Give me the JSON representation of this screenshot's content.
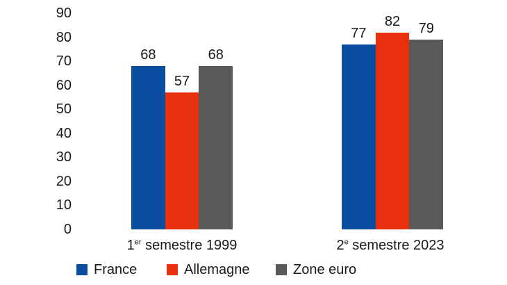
{
  "chart_data": {
    "type": "bar",
    "categories": [
      "1er semestre 1999",
      "2e semestre 2023"
    ],
    "categories_fmt": [
      {
        "num": "1",
        "sup": "er",
        "rest": " semestre 1999"
      },
      {
        "num": "2",
        "sup": "e",
        "rest": " semestre 2023"
      }
    ],
    "series": [
      {
        "name": "France",
        "color": "#0b4da1",
        "values": [
          68,
          77
        ]
      },
      {
        "name": "Allemagne",
        "color": "#e8300f",
        "values": [
          57,
          82
        ]
      },
      {
        "name": "Zone euro",
        "color": "#595959",
        "values": [
          68,
          79
        ]
      }
    ],
    "y_ticks": [
      0,
      10,
      20,
      30,
      40,
      50,
      60,
      70,
      80,
      90
    ],
    "ylim": [
      0,
      90
    ],
    "grid": false,
    "axis_lines": false,
    "value_labels": true,
    "legend_position": "bottom"
  },
  "legend": {
    "items": [
      {
        "label": "France"
      },
      {
        "label": "Allemagne"
      },
      {
        "label": "Zone euro"
      }
    ]
  },
  "colors": {
    "background": "#ffffff",
    "text": "#1a1a1a"
  }
}
